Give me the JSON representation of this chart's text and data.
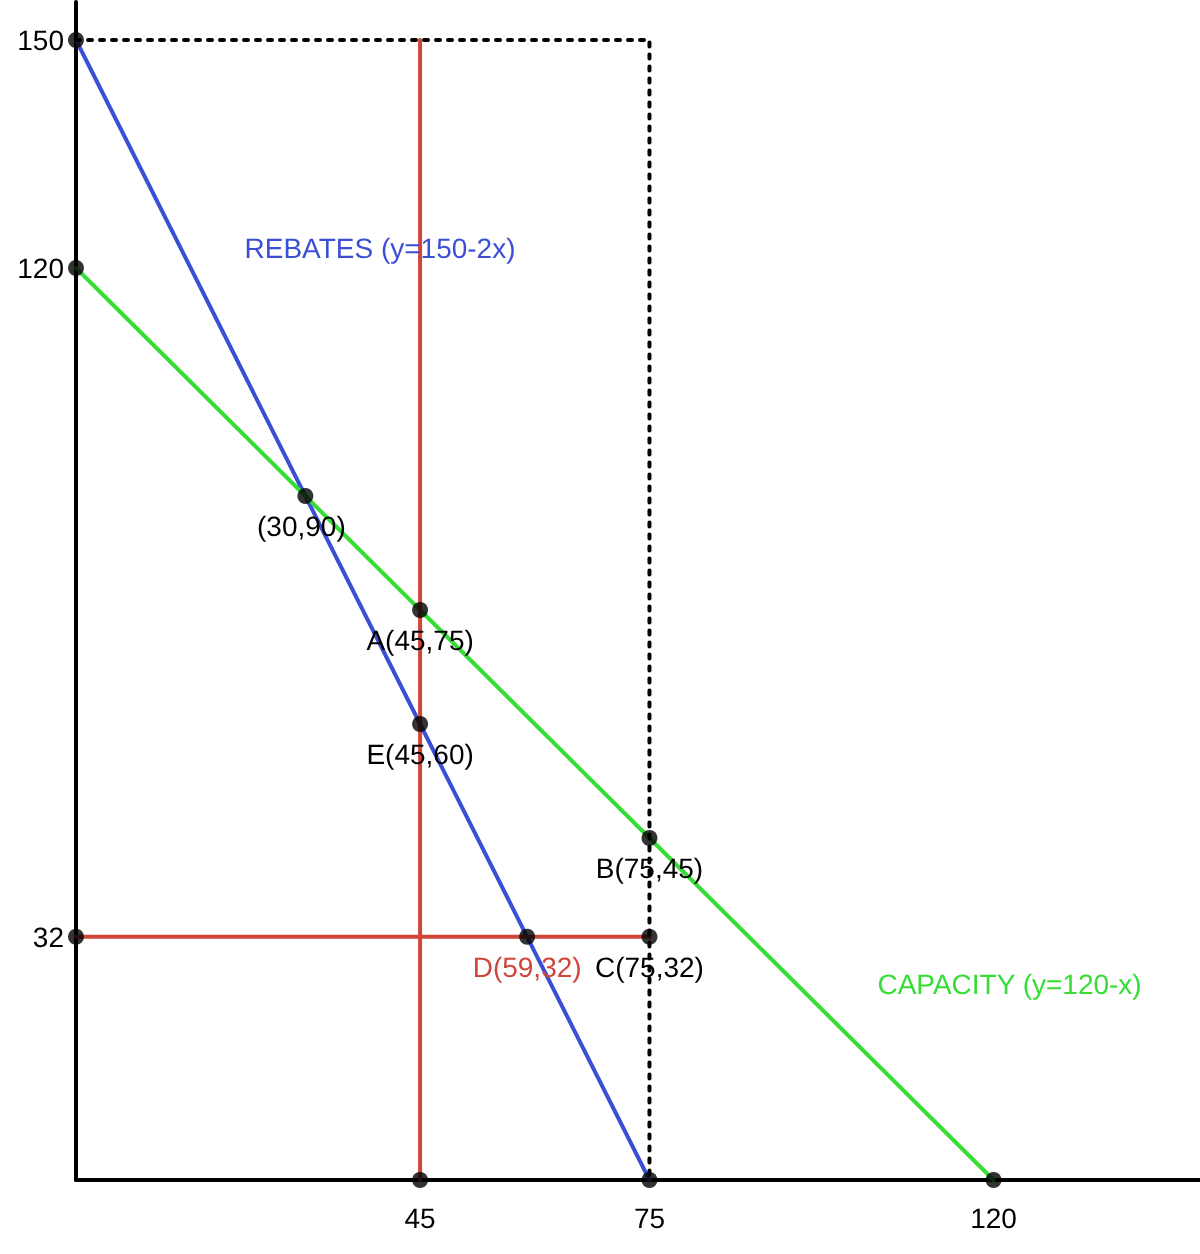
{
  "chart_data": {
    "type": "line",
    "xlim": [
      0,
      147
    ],
    "ylim": [
      0,
      155
    ],
    "xticks": [
      45,
      75,
      120
    ],
    "yticks": [
      32,
      120,
      150
    ],
    "grid": false,
    "legend": false,
    "marker": "none",
    "annotations": [
      {
        "text": "(30,90)",
        "x": 30,
        "y": 90
      }
    ],
    "series": [
      {
        "name": "REBATES (y=150-2x)",
        "color": "#3b4fd4",
        "x": [
          0,
          30,
          45,
          59,
          75
        ],
        "values": [
          150,
          90,
          60,
          32,
          0
        ],
        "value_labels": [
          null,
          null,
          "E(45,60)",
          null,
          null
        ],
        "line_style": "solid"
      },
      {
        "name": "CAPACITY (y=120-x)",
        "color": "#35dd35",
        "x": [
          0,
          30,
          45,
          75,
          120
        ],
        "values": [
          120,
          90,
          75,
          45,
          0
        ],
        "value_labels": [
          null,
          null,
          "A(45,75)",
          "B(75,45)",
          null
        ],
        "line_style": "solid"
      },
      {
        "color": "#d0463a",
        "x": [
          45,
          45
        ],
        "values": [
          0,
          150
        ],
        "line_style": "solid"
      },
      {
        "color": "#d0463a",
        "x": [
          0,
          59,
          75
        ],
        "values": [
          32,
          32,
          32
        ],
        "value_labels": [
          null,
          "D(59,32)",
          null
        ],
        "line_style": "solid"
      },
      {
        "color": "#000000",
        "x": [
          0,
          75,
          75,
          75
        ],
        "values": [
          150,
          150,
          32,
          0
        ],
        "value_labels": [
          null,
          null,
          "C(75,32)",
          null
        ],
        "line_style": "dotted"
      },
      {
        "type": "scatter",
        "color": "#000000",
        "marker": "circle",
        "x": [
          0,
          0,
          30,
          45,
          45,
          75,
          0,
          59,
          75,
          45,
          75,
          120
        ],
        "values": [
          150,
          120,
          90,
          75,
          60,
          45,
          32,
          32,
          32,
          0,
          0,
          0
        ]
      }
    ]
  }
}
